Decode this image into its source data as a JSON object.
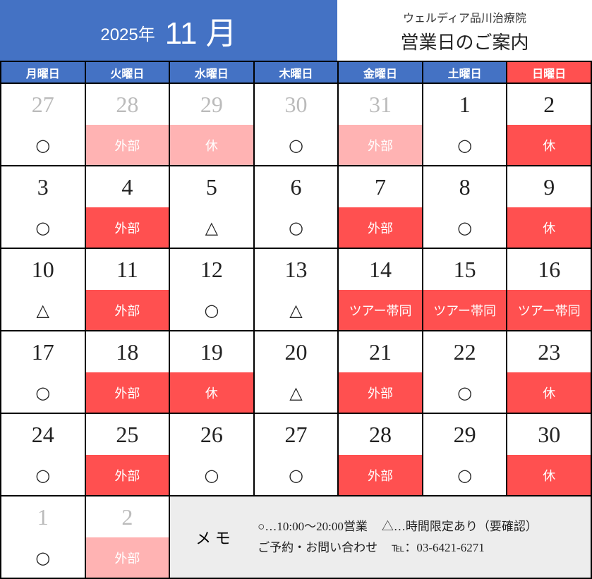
{
  "header": {
    "year": "2025年",
    "month": "11 月",
    "clinic": "ウェルディア品川治療院",
    "title": "営業日のご案内"
  },
  "weekdays": [
    "月曜日",
    "火曜日",
    "水曜日",
    "木曜日",
    "金曜日",
    "土曜日",
    "日曜日"
  ],
  "colors": {
    "blue": "#4472C4",
    "red": "#FF5050",
    "pink": "#FFB3B3"
  },
  "weeks": [
    [
      {
        "day": "27",
        "muted": true,
        "status": "○",
        "type": "none"
      },
      {
        "day": "28",
        "muted": true,
        "status": "外部",
        "type": "pink"
      },
      {
        "day": "29",
        "muted": true,
        "status": "休",
        "type": "pink"
      },
      {
        "day": "30",
        "muted": true,
        "status": "○",
        "type": "none"
      },
      {
        "day": "31",
        "muted": true,
        "status": "外部",
        "type": "pink"
      },
      {
        "day": "1",
        "status": "○",
        "type": "none"
      },
      {
        "day": "2",
        "status": "休",
        "type": "red"
      }
    ],
    [
      {
        "day": "3",
        "status": "○",
        "type": "none"
      },
      {
        "day": "4",
        "status": "外部",
        "type": "red"
      },
      {
        "day": "5",
        "status": "△",
        "type": "none"
      },
      {
        "day": "6",
        "status": "○",
        "type": "none"
      },
      {
        "day": "7",
        "status": "外部",
        "type": "red"
      },
      {
        "day": "8",
        "status": "○",
        "type": "none"
      },
      {
        "day": "9",
        "status": "休",
        "type": "red"
      }
    ],
    [
      {
        "day": "10",
        "status": "△",
        "type": "none"
      },
      {
        "day": "11",
        "status": "外部",
        "type": "red"
      },
      {
        "day": "12",
        "status": "○",
        "type": "none"
      },
      {
        "day": "13",
        "status": "△",
        "type": "none"
      },
      {
        "day": "14",
        "status": "ツアー帯同",
        "type": "red"
      },
      {
        "day": "15",
        "status": "ツアー帯同",
        "type": "red"
      },
      {
        "day": "16",
        "status": "ツアー帯同",
        "type": "red"
      }
    ],
    [
      {
        "day": "17",
        "status": "○",
        "type": "none"
      },
      {
        "day": "18",
        "status": "外部",
        "type": "red"
      },
      {
        "day": "19",
        "status": "休",
        "type": "red"
      },
      {
        "day": "20",
        "status": "△",
        "type": "none"
      },
      {
        "day": "21",
        "status": "外部",
        "type": "red"
      },
      {
        "day": "22",
        "status": "○",
        "type": "none"
      },
      {
        "day": "23",
        "status": "休",
        "type": "red"
      }
    ],
    [
      {
        "day": "24",
        "status": "○",
        "type": "none"
      },
      {
        "day": "25",
        "status": "外部",
        "type": "red"
      },
      {
        "day": "26",
        "status": "○",
        "type": "none"
      },
      {
        "day": "27",
        "status": "○",
        "type": "none"
      },
      {
        "day": "28",
        "status": "外部",
        "type": "red"
      },
      {
        "day": "29",
        "status": "○",
        "type": "none"
      },
      {
        "day": "30",
        "status": "休",
        "type": "red"
      }
    ],
    [
      {
        "day": "1",
        "muted": true,
        "status": "○",
        "type": "none"
      },
      {
        "day": "2",
        "muted": true,
        "status": "外部",
        "type": "pink"
      }
    ]
  ],
  "memo": {
    "label": "メ モ",
    "legend_open": "○…10:00～20:00営業",
    "legend_limited": "△…時間限定あり（要確認）",
    "contact": "ご予約・お問い合わせ",
    "tel": "℡：03-6421-6271"
  }
}
